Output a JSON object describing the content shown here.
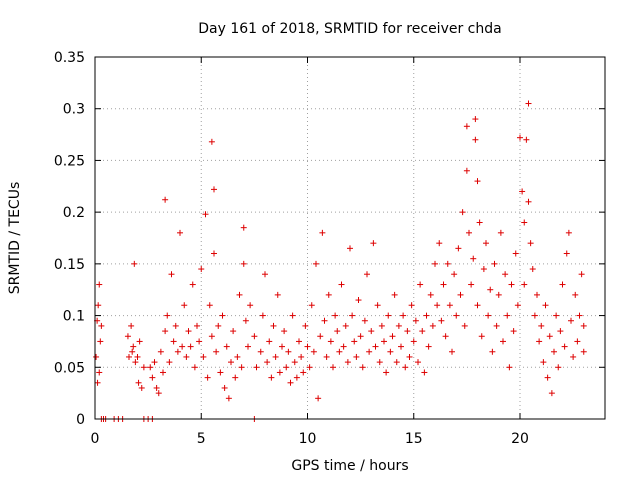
{
  "chart_data": {
    "type": "scatter",
    "title": "Day 161 of 2018, SRMTID for receiver chda",
    "xlabel": "GPS time / hours",
    "ylabel": "SRMTID / TECUs",
    "xlim": [
      0,
      24
    ],
    "ylim": [
      0,
      0.35
    ],
    "x_ticks": [
      0,
      5,
      10,
      15,
      20
    ],
    "x_tick_labels": [
      "0",
      "5",
      "10",
      "15",
      "20"
    ],
    "y_ticks": [
      0,
      0.05,
      0.1,
      0.15,
      0.2,
      0.25,
      0.3,
      0.35
    ],
    "y_tick_labels": [
      "0",
      "0.05",
      "0.1",
      "0.15",
      "0.2",
      "0.25",
      "0.3",
      "0.35"
    ],
    "grid": true,
    "marker": "+",
    "marker_color": "#dd0000",
    "series": [
      {
        "name": "SRMTID",
        "points": [
          [
            0.05,
            0.06
          ],
          [
            0.1,
            0.095
          ],
          [
            0.12,
            0.035
          ],
          [
            0.15,
            0.11
          ],
          [
            0.2,
            0.13
          ],
          [
            0.2,
            0.045
          ],
          [
            0.25,
            0.075
          ],
          [
            0.3,
            0.09
          ],
          [
            1.55,
            0.08
          ],
          [
            1.6,
            0.06
          ],
          [
            1.7,
            0.09
          ],
          [
            1.75,
            0.065
          ],
          [
            1.8,
            0.07
          ],
          [
            1.85,
            0.15
          ],
          [
            1.9,
            0.055
          ],
          [
            2.0,
            0.06
          ],
          [
            2.05,
            0.035
          ],
          [
            2.1,
            0.075
          ],
          [
            2.2,
            0.03
          ],
          [
            2.3,
            0.05
          ],
          [
            2.6,
            0.05
          ],
          [
            2.7,
            0.04
          ],
          [
            2.8,
            0.055
          ],
          [
            2.9,
            0.03
          ],
          [
            3.0,
            0.025
          ],
          [
            3.1,
            0.065
          ],
          [
            3.2,
            0.045
          ],
          [
            3.3,
            0.212
          ],
          [
            3.3,
            0.085
          ],
          [
            3.4,
            0.1
          ],
          [
            3.5,
            0.055
          ],
          [
            3.6,
            0.14
          ],
          [
            3.7,
            0.075
          ],
          [
            3.8,
            0.09
          ],
          [
            3.9,
            0.065
          ],
          [
            4.0,
            0.18
          ],
          [
            4.1,
            0.07
          ],
          [
            4.2,
            0.11
          ],
          [
            4.3,
            0.06
          ],
          [
            4.4,
            0.085
          ],
          [
            4.5,
            0.07
          ],
          [
            4.6,
            0.13
          ],
          [
            4.7,
            0.05
          ],
          [
            4.8,
            0.09
          ],
          [
            4.9,
            0.075
          ],
          [
            5.0,
            0.145
          ],
          [
            5.1,
            0.06
          ],
          [
            5.2,
            0.198
          ],
          [
            5.3,
            0.04
          ],
          [
            5.4,
            0.11
          ],
          [
            5.5,
            0.268
          ],
          [
            5.5,
            0.08
          ],
          [
            5.6,
            0.222
          ],
          [
            5.6,
            0.16
          ],
          [
            5.7,
            0.065
          ],
          [
            5.8,
            0.09
          ],
          [
            5.9,
            0.045
          ],
          [
            6.0,
            0.1
          ],
          [
            6.1,
            0.03
          ],
          [
            6.2,
            0.07
          ],
          [
            6.3,
            0.02
          ],
          [
            6.4,
            0.055
          ],
          [
            6.5,
            0.085
          ],
          [
            6.6,
            0.04
          ],
          [
            6.7,
            0.06
          ],
          [
            6.8,
            0.12
          ],
          [
            6.9,
            0.05
          ],
          [
            7.0,
            0.185
          ],
          [
            7.0,
            0.15
          ],
          [
            7.1,
            0.095
          ],
          [
            7.2,
            0.07
          ],
          [
            7.3,
            0.11
          ],
          [
            7.5,
            0.08
          ],
          [
            7.6,
            0.05
          ],
          [
            7.8,
            0.065
          ],
          [
            7.9,
            0.1
          ],
          [
            8.0,
            0.14
          ],
          [
            8.1,
            0.055
          ],
          [
            8.2,
            0.075
          ],
          [
            8.3,
            0.04
          ],
          [
            8.4,
            0.09
          ],
          [
            8.5,
            0.06
          ],
          [
            8.6,
            0.12
          ],
          [
            8.7,
            0.045
          ],
          [
            8.8,
            0.07
          ],
          [
            8.9,
            0.085
          ],
          [
            9.0,
            0.05
          ],
          [
            9.1,
            0.065
          ],
          [
            9.2,
            0.035
          ],
          [
            9.3,
            0.1
          ],
          [
            9.4,
            0.055
          ],
          [
            9.5,
            0.04
          ],
          [
            9.6,
            0.075
          ],
          [
            9.7,
            0.06
          ],
          [
            9.8,
            0.045
          ],
          [
            9.9,
            0.09
          ],
          [
            10.0,
            0.07
          ],
          [
            10.1,
            0.05
          ],
          [
            10.2,
            0.11
          ],
          [
            10.3,
            0.065
          ],
          [
            10.4,
            0.15
          ],
          [
            10.5,
            0.02
          ],
          [
            10.6,
            0.08
          ],
          [
            10.7,
            0.18
          ],
          [
            10.8,
            0.095
          ],
          [
            10.9,
            0.06
          ],
          [
            11.0,
            0.12
          ],
          [
            11.1,
            0.075
          ],
          [
            11.2,
            0.05
          ],
          [
            11.3,
            0.1
          ],
          [
            11.4,
            0.085
          ],
          [
            11.5,
            0.065
          ],
          [
            11.6,
            0.13
          ],
          [
            11.7,
            0.07
          ],
          [
            11.8,
            0.09
          ],
          [
            11.9,
            0.055
          ],
          [
            12.0,
            0.165
          ],
          [
            12.1,
            0.1
          ],
          [
            12.2,
            0.075
          ],
          [
            12.3,
            0.06
          ],
          [
            12.4,
            0.115
          ],
          [
            12.5,
            0.08
          ],
          [
            12.6,
            0.05
          ],
          [
            12.7,
            0.095
          ],
          [
            12.8,
            0.14
          ],
          [
            12.9,
            0.065
          ],
          [
            13.0,
            0.085
          ],
          [
            13.1,
            0.17
          ],
          [
            13.2,
            0.07
          ],
          [
            13.3,
            0.11
          ],
          [
            13.4,
            0.055
          ],
          [
            13.5,
            0.09
          ],
          [
            13.6,
            0.075
          ],
          [
            13.7,
            0.045
          ],
          [
            13.8,
            0.1
          ],
          [
            13.9,
            0.065
          ],
          [
            14.0,
            0.08
          ],
          [
            14.1,
            0.12
          ],
          [
            14.2,
            0.055
          ],
          [
            14.3,
            0.09
          ],
          [
            14.4,
            0.07
          ],
          [
            14.5,
            0.1
          ],
          [
            14.6,
            0.05
          ],
          [
            14.7,
            0.085
          ],
          [
            14.8,
            0.06
          ],
          [
            14.9,
            0.11
          ],
          [
            15.0,
            0.075
          ],
          [
            15.1,
            0.095
          ],
          [
            15.2,
            0.055
          ],
          [
            15.3,
            0.13
          ],
          [
            15.4,
            0.085
          ],
          [
            15.5,
            0.045
          ],
          [
            15.6,
            0.1
          ],
          [
            15.7,
            0.07
          ],
          [
            15.8,
            0.12
          ],
          [
            15.9,
            0.09
          ],
          [
            16.0,
            0.15
          ],
          [
            16.1,
            0.11
          ],
          [
            16.2,
            0.17
          ],
          [
            16.3,
            0.095
          ],
          [
            16.4,
            0.13
          ],
          [
            16.5,
            0.08
          ],
          [
            16.6,
            0.15
          ],
          [
            16.7,
            0.11
          ],
          [
            16.8,
            0.065
          ],
          [
            16.9,
            0.14
          ],
          [
            17.0,
            0.1
          ],
          [
            17.1,
            0.165
          ],
          [
            17.2,
            0.12
          ],
          [
            17.3,
            0.2
          ],
          [
            17.4,
            0.09
          ],
          [
            17.5,
            0.283
          ],
          [
            17.5,
            0.24
          ],
          [
            17.6,
            0.18
          ],
          [
            17.7,
            0.13
          ],
          [
            17.8,
            0.155
          ],
          [
            17.9,
            0.29
          ],
          [
            17.9,
            0.27
          ],
          [
            18.0,
            0.23
          ],
          [
            18.0,
            0.11
          ],
          [
            18.1,
            0.19
          ],
          [
            18.2,
            0.08
          ],
          [
            18.3,
            0.145
          ],
          [
            18.4,
            0.17
          ],
          [
            18.5,
            0.1
          ],
          [
            18.6,
            0.125
          ],
          [
            18.7,
            0.065
          ],
          [
            18.8,
            0.15
          ],
          [
            18.9,
            0.09
          ],
          [
            19.0,
            0.12
          ],
          [
            19.1,
            0.18
          ],
          [
            19.2,
            0.075
          ],
          [
            19.3,
            0.14
          ],
          [
            19.4,
            0.1
          ],
          [
            19.5,
            0.05
          ],
          [
            19.6,
            0.13
          ],
          [
            19.7,
            0.085
          ],
          [
            19.8,
            0.16
          ],
          [
            19.9,
            0.11
          ],
          [
            20.0,
            0.272
          ],
          [
            20.1,
            0.22
          ],
          [
            20.2,
            0.19
          ],
          [
            20.2,
            0.13
          ],
          [
            20.3,
            0.27
          ],
          [
            20.4,
            0.305
          ],
          [
            20.4,
            0.21
          ],
          [
            20.5,
            0.17
          ],
          [
            20.6,
            0.145
          ],
          [
            20.7,
            0.1
          ],
          [
            20.8,
            0.12
          ],
          [
            20.9,
            0.075
          ],
          [
            21.0,
            0.09
          ],
          [
            21.1,
            0.055
          ],
          [
            21.2,
            0.11
          ],
          [
            21.3,
            0.04
          ],
          [
            21.4,
            0.08
          ],
          [
            21.5,
            0.025
          ],
          [
            21.6,
            0.065
          ],
          [
            21.7,
            0.1
          ],
          [
            21.8,
            0.05
          ],
          [
            21.9,
            0.085
          ],
          [
            22.0,
            0.13
          ],
          [
            22.1,
            0.07
          ],
          [
            22.2,
            0.16
          ],
          [
            22.3,
            0.18
          ],
          [
            22.4,
            0.095
          ],
          [
            22.5,
            0.06
          ],
          [
            22.6,
            0.12
          ],
          [
            22.7,
            0.075
          ],
          [
            22.8,
            0.1
          ],
          [
            22.9,
            0.14
          ],
          [
            23.0,
            0.065
          ],
          [
            23.0,
            0.09
          ],
          [
            0.3,
            0
          ],
          [
            0.4,
            0
          ],
          [
            0.5,
            0
          ],
          [
            0.9,
            0
          ],
          [
            1.1,
            0
          ],
          [
            1.3,
            0
          ],
          [
            2.3,
            0
          ],
          [
            2.5,
            0
          ],
          [
            2.7,
            0
          ],
          [
            7.5,
            0
          ]
        ]
      }
    ]
  }
}
